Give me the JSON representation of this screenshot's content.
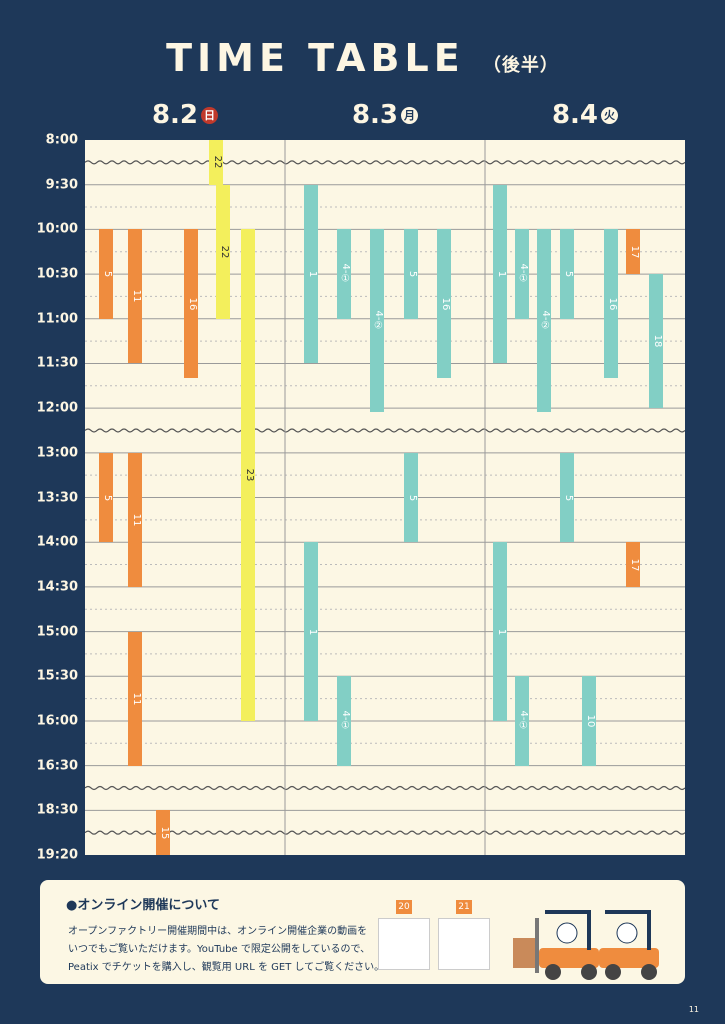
{
  "header": {
    "title": "TIME TABLE",
    "subtitle": "（後半）"
  },
  "times": [
    "8:00",
    "9:30",
    "10:00",
    "10:30",
    "11:00",
    "11:30",
    "12:00",
    "13:00",
    "13:30",
    "14:00",
    "14:30",
    "15:00",
    "15:30",
    "16:00",
    "16:30",
    "18:30",
    "19:20"
  ],
  "days": [
    {
      "date": "8.2",
      "weekday": "日",
      "events": [
        {
          "label": "5",
          "start": "10:00",
          "end": "11:00",
          "color": "#ef8c3e"
        },
        {
          "label": "11",
          "start": "10:00",
          "end": "11:30",
          "color": "#ef8c3e"
        },
        {
          "label": "16",
          "start": "10:00",
          "end": "11:40",
          "color": "#ef8c3e"
        },
        {
          "label": "22",
          "start": "8:00",
          "end": "9:30",
          "color": "#f3ef5c"
        },
        {
          "label": "22",
          "start": "9:30",
          "end": "11:00",
          "color": "#f3ef5c"
        },
        {
          "label": "23",
          "start": "10:00",
          "end": "16:00",
          "color": "#f3ef5c"
        },
        {
          "label": "5",
          "start": "13:00",
          "end": "14:00",
          "color": "#ef8c3e"
        },
        {
          "label": "11",
          "start": "13:00",
          "end": "14:30",
          "color": "#ef8c3e"
        },
        {
          "label": "11",
          "start": "15:00",
          "end": "16:30",
          "color": "#ef8c3e"
        },
        {
          "label": "15",
          "start": "18:30",
          "end": "19:20",
          "color": "#ef8c3e"
        }
      ]
    },
    {
      "date": "8.3",
      "weekday": "月",
      "events": [
        {
          "label": "1",
          "start": "9:30",
          "end": "11:30",
          "color": "#82cfc5"
        },
        {
          "label": "4-①",
          "start": "10:00",
          "end": "11:00",
          "color": "#82cfc5"
        },
        {
          "label": "4-②",
          "start": "10:00",
          "end": "12:05",
          "color": "#82cfc5"
        },
        {
          "label": "5",
          "start": "10:00",
          "end": "11:00",
          "color": "#82cfc5"
        },
        {
          "label": "16",
          "start": "10:00",
          "end": "11:40",
          "color": "#82cfc5"
        },
        {
          "label": "5",
          "start": "13:00",
          "end": "14:00",
          "color": "#82cfc5"
        },
        {
          "label": "1",
          "start": "14:00",
          "end": "16:00",
          "color": "#82cfc5"
        },
        {
          "label": "4-①",
          "start": "15:30",
          "end": "16:30",
          "color": "#82cfc5"
        }
      ]
    },
    {
      "date": "8.4",
      "weekday": "火",
      "events": [
        {
          "label": "1",
          "start": "9:30",
          "end": "11:30",
          "color": "#82cfc5"
        },
        {
          "label": "4-①",
          "start": "10:00",
          "end": "11:00",
          "color": "#82cfc5"
        },
        {
          "label": "4-②",
          "start": "10:00",
          "end": "12:05",
          "color": "#82cfc5"
        },
        {
          "label": "5",
          "start": "10:00",
          "end": "11:00",
          "color": "#82cfc5"
        },
        {
          "label": "16",
          "start": "10:00",
          "end": "11:40",
          "color": "#82cfc5"
        },
        {
          "label": "17",
          "start": "10:00",
          "end": "10:30",
          "color": "#ef8c3e"
        },
        {
          "label": "18",
          "start": "10:30",
          "end": "12:00",
          "color": "#82cfc5"
        },
        {
          "label": "5",
          "start": "13:00",
          "end": "14:00",
          "color": "#82cfc5"
        },
        {
          "label": "17",
          "start": "14:00",
          "end": "14:30",
          "color": "#ef8c3e"
        },
        {
          "label": "1",
          "start": "14:00",
          "end": "16:00",
          "color": "#82cfc5"
        },
        {
          "label": "4-①",
          "start": "15:30",
          "end": "16:30",
          "color": "#82cfc5"
        },
        {
          "label": "10",
          "start": "15:30",
          "end": "16:30",
          "color": "#82cfc5"
        }
      ]
    }
  ],
  "info": {
    "title": "●オンライン開催について",
    "lines": [
      "オープンファクトリー開催期間中は、オンライン開催企業の動画を",
      "いつでもご覧いただけます。YouTube で限定公開をしているので、",
      "Peatix でチケットを購入し、観覧用 URL を GET してご覧ください。"
    ],
    "qr": [
      "20",
      "21"
    ]
  },
  "page_number": "11"
}
